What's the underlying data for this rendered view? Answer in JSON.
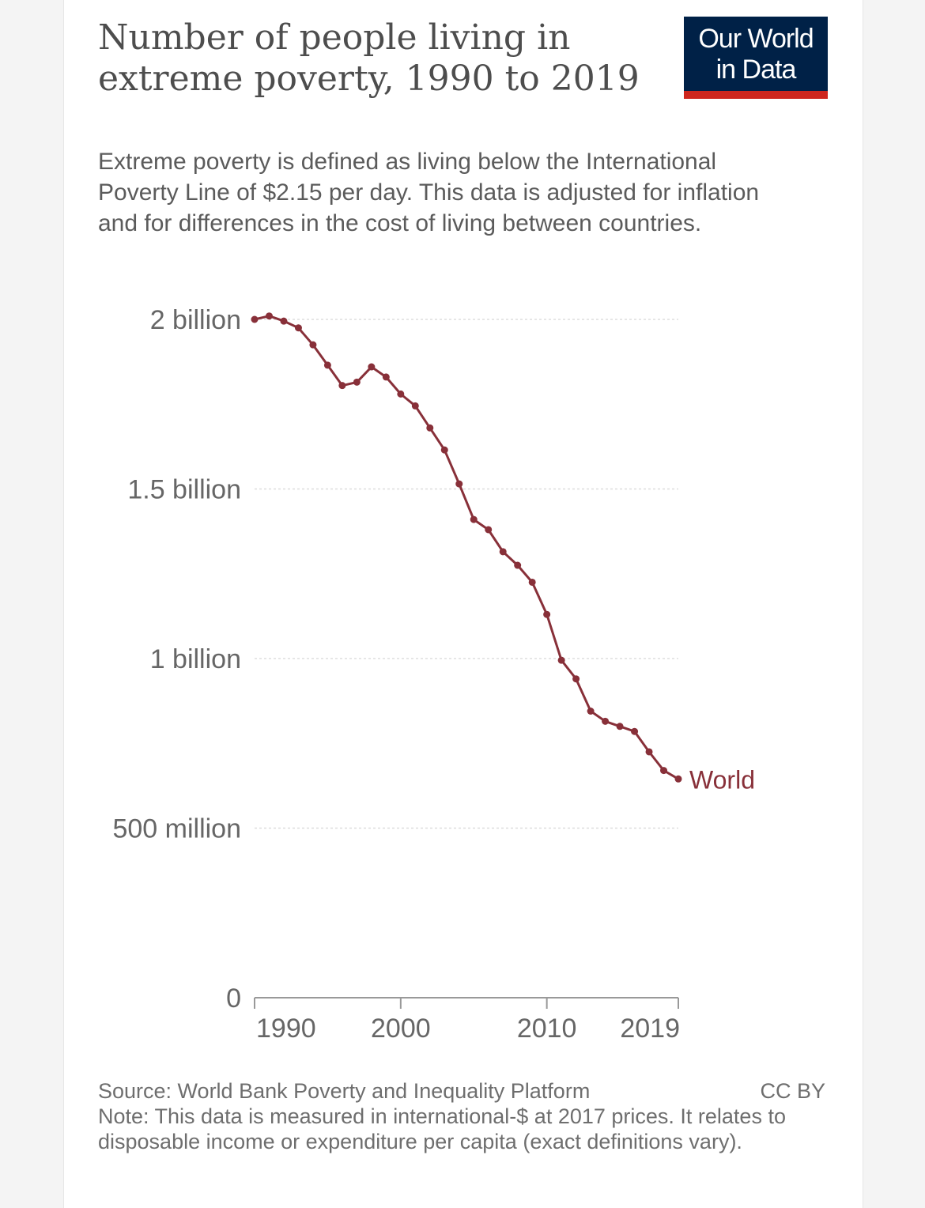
{
  "header": {
    "title": "Number of people living in extreme poverty, 1990 to 2019",
    "subtitle": "Extreme poverty is defined as living below the International Poverty Line of $2.15 per day. This data is adjusted for inflation and for differences in the cost of living between countries."
  },
  "logo": {
    "line1": "Our World",
    "line2": "in Data"
  },
  "footer": {
    "source": "Source: World Bank Poverty and Inequality Platform",
    "license": "CC BY",
    "note": "Note: This data is measured in international-$ at 2017 prices. It relates to disposable income or expenditure per capita (exact definitions vary)."
  },
  "colors": {
    "series": "#883039",
    "logo_bg": "#002147",
    "logo_accent": "#ce261e",
    "grid": "#dddddd",
    "text": "#5b5b5b"
  },
  "chart_data": {
    "type": "line",
    "title": "Number of people living in extreme poverty, 1990 to 2019",
    "xlabel": "",
    "ylabel": "",
    "xlim": [
      1990,
      2019
    ],
    "ylim": [
      0,
      2000000000
    ],
    "x_ticks": [
      1990,
      2000,
      2010,
      2019
    ],
    "y_ticks": [
      {
        "value": 0,
        "label": "0"
      },
      {
        "value": 500000000,
        "label": "500 million"
      },
      {
        "value": 1000000000,
        "label": "1 billion"
      },
      {
        "value": 1500000000,
        "label": "1.5 billion"
      },
      {
        "value": 2000000000,
        "label": "2 billion"
      }
    ],
    "grid": true,
    "series": [
      {
        "name": "World",
        "x": [
          1990,
          1991,
          1992,
          1993,
          1994,
          1995,
          1996,
          1997,
          1998,
          1999,
          2000,
          2001,
          2002,
          2003,
          2004,
          2005,
          2006,
          2007,
          2008,
          2009,
          2010,
          2011,
          2012,
          2013,
          2014,
          2015,
          2016,
          2017,
          2018,
          2019
        ],
        "values": [
          2000000000,
          2010000000,
          1995000000,
          1975000000,
          1925000000,
          1865000000,
          1805000000,
          1815000000,
          1860000000,
          1830000000,
          1780000000,
          1745000000,
          1680000000,
          1615000000,
          1515000000,
          1410000000,
          1380000000,
          1315000000,
          1275000000,
          1225000000,
          1130000000,
          995000000,
          940000000,
          845000000,
          815000000,
          800000000,
          785000000,
          725000000,
          670000000,
          645000000
        ]
      }
    ]
  }
}
